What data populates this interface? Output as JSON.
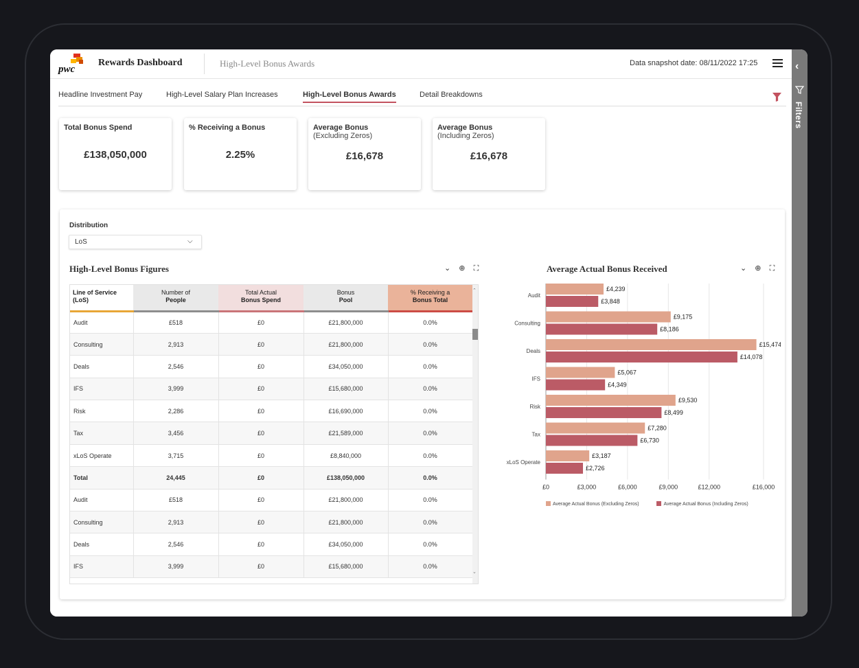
{
  "header": {
    "logo_text": "pwc",
    "app_title": "Rewards Dashboard",
    "page_subtitle": "High-Level Bonus Awards",
    "snapshot": "Data snapshot date: 08/11/2022 17:25",
    "menu_icon": "hamburger-menu-icon"
  },
  "side_panel": {
    "label": "Filters",
    "collapse_icon": "chevron-left-icon",
    "filter_icon": "funnel-outline-icon"
  },
  "tabs": [
    {
      "label": "Headline Investment Pay",
      "active": false
    },
    {
      "label": "High-Level Salary Plan Increases",
      "active": false
    },
    {
      "label": "High-Level Bonus Awards",
      "active": true
    },
    {
      "label": "Detail Breakdowns",
      "active": false
    }
  ],
  "kpis": [
    {
      "title": "Total Bonus Spend",
      "subtitle": "",
      "value": "£138,050,000"
    },
    {
      "title": "% Receiving a Bonus",
      "subtitle": "",
      "value": "2.25%"
    },
    {
      "title": "Average Bonus",
      "subtitle": "(Excluding Zeros)",
      "value": "£16,678"
    },
    {
      "title": "Average Bonus",
      "subtitle": "(Including Zeros)",
      "value": "£16,678"
    }
  ],
  "distribution": {
    "label": "Distribution",
    "selected": "LoS"
  },
  "table_section": {
    "title": "High-Level Bonus Figures",
    "columns": [
      {
        "line1": "Line of Service (LoS)",
        "line2": ""
      },
      {
        "line1": "Number of",
        "line2": "People"
      },
      {
        "line1": "Total Actual",
        "line2": "Bonus Spend"
      },
      {
        "line1": "Bonus",
        "line2": "Pool"
      },
      {
        "line1": "% Receiving a",
        "line2": "Bonus Total"
      }
    ],
    "rows": [
      [
        "Audit",
        "£518",
        "£0",
        "£21,800,000",
        "0.0%"
      ],
      [
        "Consulting",
        "2,913",
        "£0",
        "£21,800,000",
        "0.0%"
      ],
      [
        "Deals",
        "2,546",
        "£0",
        "£34,050,000",
        "0.0%"
      ],
      [
        "IFS",
        "3,999",
        "£0",
        "£15,680,000",
        "0.0%"
      ],
      [
        "Risk",
        "2,286",
        "£0",
        "£16,690,000",
        "0.0%"
      ],
      [
        "Tax",
        "3,456",
        "£0",
        "£21,589,000",
        "0.0%"
      ],
      [
        "xLoS Operate",
        "3,715",
        "£0",
        "£8,840,000",
        "0.0%"
      ],
      [
        "Total",
        "24,445",
        "£0",
        "£138,050,000",
        "0.0%"
      ],
      [
        "Audit",
        "£518",
        "£0",
        "£21,800,000",
        "0.0%"
      ],
      [
        "Consulting",
        "2,913",
        "£0",
        "£21,800,000",
        "0.0%"
      ],
      [
        "Deals",
        "2,546",
        "£0",
        "£34,050,000",
        "0.0%"
      ],
      [
        "IFS",
        "3,999",
        "£0",
        "£15,680,000",
        "0.0%"
      ]
    ]
  },
  "chart_section": {
    "title": "Average Actual Bonus Received"
  },
  "chart_data": {
    "type": "bar",
    "orientation": "horizontal",
    "title": "Average Actual Bonus Received",
    "categories": [
      "Audit",
      "Consulting",
      "Deals",
      "IFS",
      "Risk",
      "Tax",
      "xLoS Operate"
    ],
    "series": [
      {
        "name": "Average Actual Bonus (Excluding Zeros)",
        "color": "#e0a48c",
        "values": [
          4239,
          9175,
          15474,
          5067,
          9530,
          7280,
          3187
        ],
        "labels": [
          "£4,239",
          "£9,175",
          "£15,474",
          "£5,067",
          "£9,530",
          "£7,280",
          "£3,187"
        ]
      },
      {
        "name": "Average Actual Bonus (Including Zeros)",
        "color": "#bb5b66",
        "values": [
          3848,
          8186,
          14078,
          4349,
          8499,
          6730,
          2726
        ],
        "labels": [
          "£3,848",
          "£8,186",
          "£14,078",
          "£4,349",
          "£8,499",
          "£6,730",
          "£2,726"
        ]
      }
    ],
    "xlim": [
      0,
      16000
    ],
    "xticks": [
      0,
      3000,
      6000,
      9000,
      12000,
      16000
    ],
    "xtick_labels": [
      "£0",
      "£3,000",
      "£6,000",
      "£9,000",
      "£12,000",
      "£16,000"
    ],
    "grid": true,
    "legend": "bottom"
  }
}
